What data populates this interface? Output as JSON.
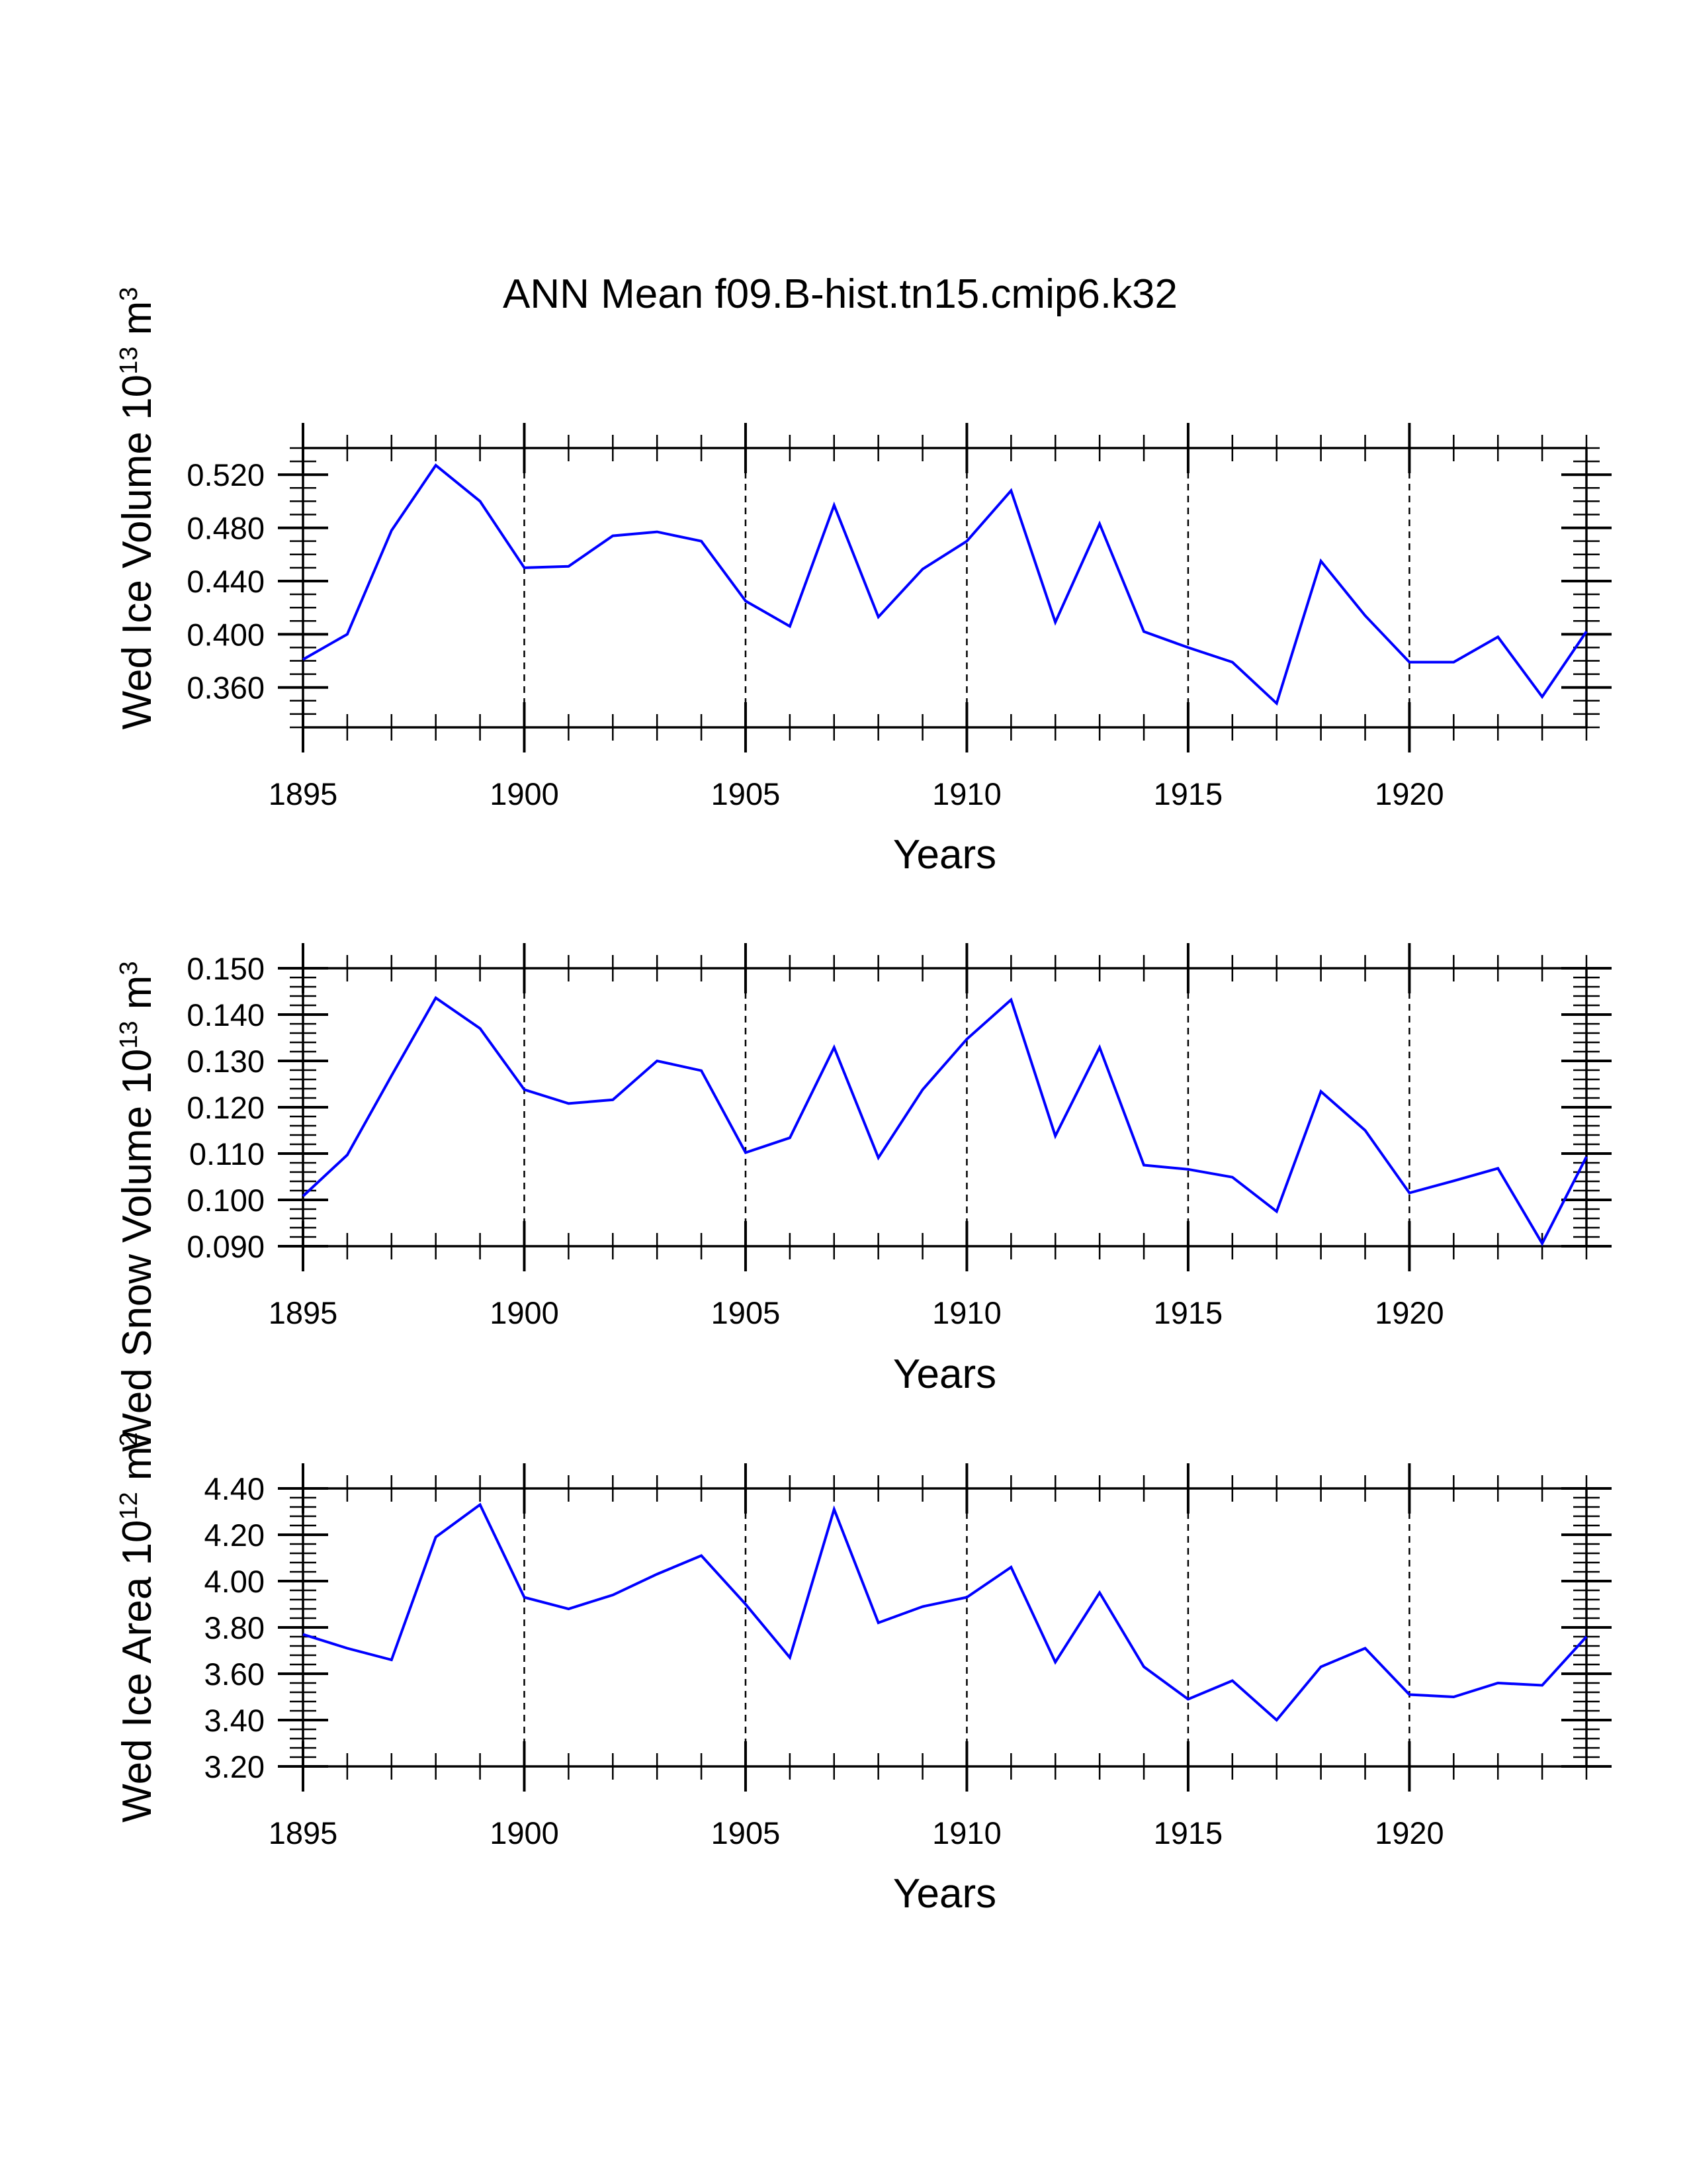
{
  "figure": {
    "title": "ANN Mean f09.B-hist.tn15.cmip6.k32"
  },
  "colors": {
    "series": "#0000ff",
    "axes": "#000000",
    "grid": "#000000",
    "background": "#ffffff"
  },
  "chart_data": [
    {
      "type": "line",
      "ylabel": {
        "main": "Wed Ice Volume 10",
        "exp": "13",
        "unit": " m",
        "unit_exp": "3"
      },
      "xlabel": "Years",
      "xlim": [
        1895,
        1924
      ],
      "ylim": [
        0.33,
        0.54
      ],
      "xticks": [
        1895,
        1900,
        1905,
        1910,
        1915,
        1920
      ],
      "yticks": [
        0.36,
        0.4,
        0.44,
        0.48,
        0.52
      ],
      "ytick_labels": [
        "0.360",
        "0.400",
        "0.440",
        "0.480",
        "0.520"
      ],
      "yminor_step": 0.01,
      "grid": "dashed vertical lines at major x ticks",
      "series": [
        {
          "x": [
            1895,
            1896,
            1897,
            1898,
            1899,
            1900,
            1901,
            1902,
            1903,
            1904,
            1905,
            1906,
            1907,
            1908,
            1909,
            1910,
            1911,
            1912,
            1913,
            1914,
            1915,
            1916,
            1917,
            1918,
            1919,
            1920,
            1921,
            1922,
            1923,
            1924
          ],
          "values": [
            0.381,
            0.4,
            0.478,
            0.527,
            0.5,
            0.45,
            0.451,
            0.474,
            0.477,
            0.47,
            0.425,
            0.406,
            0.497,
            0.413,
            0.449,
            0.47,
            0.508,
            0.409,
            0.483,
            0.402,
            0.39,
            0.379,
            0.348,
            0.455,
            0.414,
            0.379,
            0.379,
            0.398,
            0.353,
            0.402
          ]
        }
      ]
    },
    {
      "type": "line",
      "ylabel": {
        "main": "Wed Snow Volume 10",
        "exp": "13",
        "unit": " m",
        "unit_exp": "3"
      },
      "xlabel": "Years",
      "xlim": [
        1895,
        1924
      ],
      "ylim": [
        0.09,
        0.15
      ],
      "xticks": [
        1895,
        1900,
        1905,
        1910,
        1915,
        1920
      ],
      "yticks": [
        0.09,
        0.1,
        0.11,
        0.12,
        0.13,
        0.14,
        0.15
      ],
      "ytick_labels": [
        "0.090",
        "0.100",
        "0.110",
        "0.120",
        "0.130",
        "0.140",
        "0.150"
      ],
      "yminor_step": 0.002,
      "grid": "dashed vertical lines at major x ticks",
      "series": [
        {
          "x": [
            1895,
            1896,
            1897,
            1898,
            1899,
            1900,
            1901,
            1902,
            1903,
            1904,
            1905,
            1906,
            1907,
            1908,
            1909,
            1910,
            1911,
            1912,
            1913,
            1914,
            1915,
            1916,
            1917,
            1918,
            1919,
            1920,
            1921,
            1922,
            1923,
            1924
          ],
          "values": [
            0.1008,
            0.1097,
            0.1268,
            0.1436,
            0.137,
            0.1238,
            0.1208,
            0.1216,
            0.13,
            0.1279,
            0.1102,
            0.1134,
            0.1329,
            0.1091,
            0.1238,
            0.1347,
            0.1432,
            0.1138,
            0.1329,
            0.1075,
            0.1066,
            0.1049,
            0.0975,
            0.1234,
            0.115,
            0.1015,
            0.1041,
            0.1068,
            0.0906,
            0.1093
          ]
        }
      ]
    },
    {
      "type": "line",
      "ylabel": {
        "main": "Wed Ice Area 10",
        "exp": "12",
        "unit": " m",
        "unit_exp": "2"
      },
      "xlabel": "Years",
      "xlim": [
        1895,
        1924
      ],
      "ylim": [
        3.2,
        4.4
      ],
      "xticks": [
        1895,
        1900,
        1905,
        1910,
        1915,
        1920
      ],
      "yticks": [
        3.2,
        3.4,
        3.6,
        3.8,
        4.0,
        4.2,
        4.4
      ],
      "ytick_labels": [
        "3.20",
        "3.40",
        "3.60",
        "3.80",
        "4.00",
        "4.20",
        "4.40"
      ],
      "yminor_step": 0.04,
      "grid": "dashed vertical lines at major x ticks",
      "series": [
        {
          "x": [
            1895,
            1896,
            1897,
            1898,
            1899,
            1900,
            1901,
            1902,
            1903,
            1904,
            1905,
            1906,
            1907,
            1908,
            1909,
            1910,
            1911,
            1912,
            1913,
            1914,
            1915,
            1916,
            1917,
            1918,
            1919,
            1920,
            1921,
            1922,
            1923,
            1924
          ],
          "values": [
            3.77,
            3.71,
            3.66,
            4.19,
            4.33,
            3.93,
            3.88,
            3.94,
            4.03,
            4.11,
            3.9,
            3.67,
            4.31,
            3.82,
            3.89,
            3.93,
            4.06,
            3.65,
            3.95,
            3.63,
            3.49,
            3.57,
            3.4,
            3.63,
            3.71,
            3.51,
            3.5,
            3.56,
            3.55,
            3.76
          ]
        }
      ]
    }
  ]
}
